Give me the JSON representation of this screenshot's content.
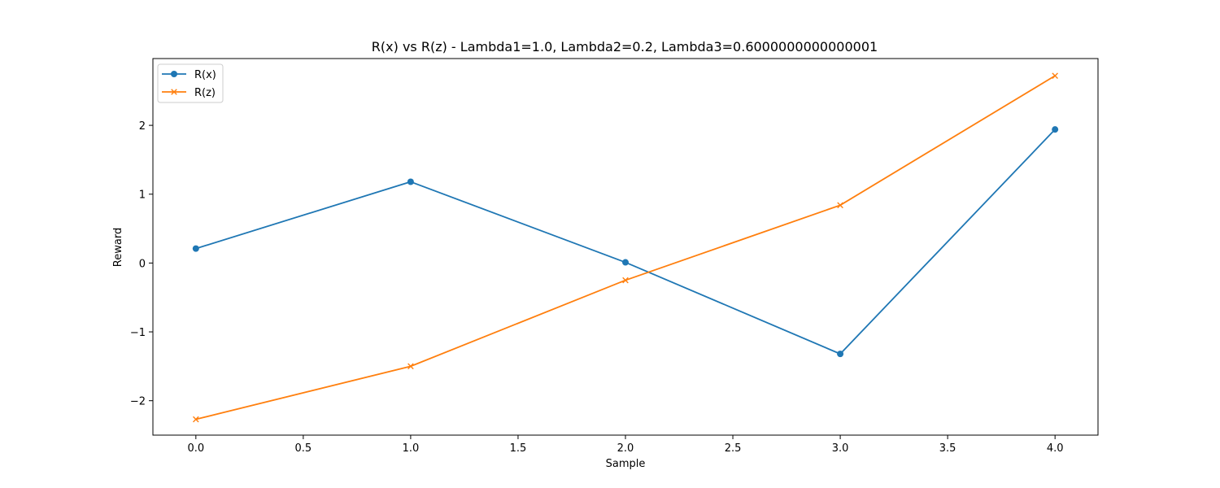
{
  "chart_data": {
    "type": "line",
    "title": "R(x) vs R(z) - Lambda1=1.0, Lambda2=0.2, Lambda3=0.6000000000000001",
    "xlabel": "Sample",
    "ylabel": "Reward",
    "x": [
      0,
      1,
      2,
      3,
      4
    ],
    "xlim": [
      -0.2,
      4.2
    ],
    "ylim": [
      -2.5,
      2.97
    ],
    "xticks": [
      0.0,
      0.5,
      1.0,
      1.5,
      2.0,
      2.5,
      3.0,
      3.5,
      4.0
    ],
    "xtick_labels": [
      "0.0",
      "0.5",
      "1.0",
      "1.5",
      "2.0",
      "2.5",
      "3.0",
      "3.5",
      "4.0"
    ],
    "yticks": [
      -2,
      -1,
      0,
      1,
      2
    ],
    "ytick_labels": [
      "−2",
      "−1",
      "0",
      "1",
      "2"
    ],
    "grid": false,
    "legend_position": "top-left",
    "series": [
      {
        "name": "R(x)",
        "marker": "circle",
        "color": "#1f77b4",
        "values": [
          0.21,
          1.18,
          0.01,
          -1.32,
          1.94
        ]
      },
      {
        "name": "R(z)",
        "marker": "x",
        "color": "#ff7f0e",
        "values": [
          -2.27,
          -1.5,
          -0.25,
          0.84,
          2.72
        ]
      }
    ]
  }
}
